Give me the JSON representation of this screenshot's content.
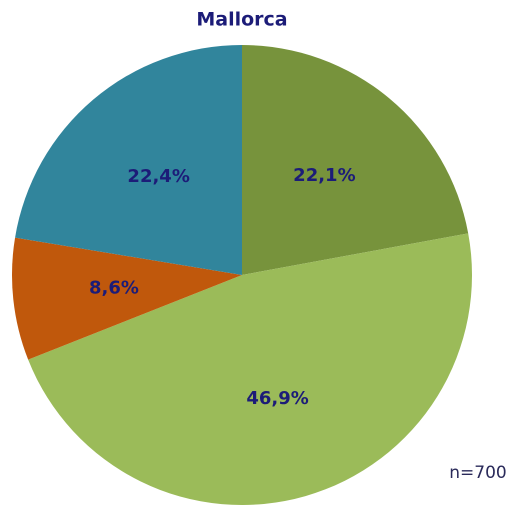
{
  "chart_data": {
    "type": "pie",
    "title": "Mallorca",
    "values": [
      22.1,
      46.9,
      8.6,
      22.4
    ],
    "value_labels": [
      "22,1%",
      "46,9%",
      "8,6%",
      "22,4%"
    ],
    "colors": [
      "#77933c",
      "#9bbb59",
      "#c0580c",
      "#31859c"
    ],
    "annotation": "n=700"
  }
}
